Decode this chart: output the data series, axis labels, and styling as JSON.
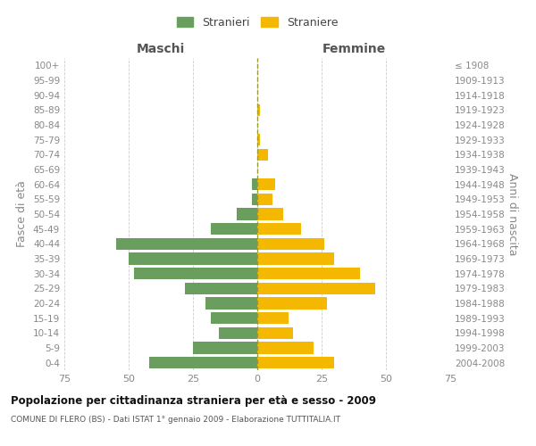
{
  "age_groups": [
    "0-4",
    "5-9",
    "10-14",
    "15-19",
    "20-24",
    "25-29",
    "30-34",
    "35-39",
    "40-44",
    "45-49",
    "50-54",
    "55-59",
    "60-64",
    "65-69",
    "70-74",
    "75-79",
    "80-84",
    "85-89",
    "90-94",
    "95-99",
    "100+"
  ],
  "birth_years": [
    "2004-2008",
    "1999-2003",
    "1994-1998",
    "1989-1993",
    "1984-1988",
    "1979-1983",
    "1974-1978",
    "1969-1973",
    "1964-1968",
    "1959-1963",
    "1954-1958",
    "1949-1953",
    "1944-1948",
    "1939-1943",
    "1934-1938",
    "1929-1933",
    "1924-1928",
    "1919-1923",
    "1914-1918",
    "1909-1913",
    "≤ 1908"
  ],
  "maschi": [
    42,
    25,
    15,
    18,
    20,
    28,
    48,
    50,
    55,
    18,
    8,
    2,
    2,
    0,
    0,
    0,
    0,
    0,
    0,
    0,
    0
  ],
  "femmine": [
    30,
    22,
    14,
    12,
    27,
    46,
    40,
    30,
    26,
    17,
    10,
    6,
    7,
    0,
    4,
    1,
    0,
    1,
    0,
    0,
    0
  ],
  "color_maschi": "#6a9e5e",
  "color_femmine": "#f5b800",
  "title": "Popolazione per cittadinanza straniera per età e sesso - 2009",
  "subtitle": "COMUNE DI FLERO (BS) - Dati ISTAT 1° gennaio 2009 - Elaborazione TUTTITALIA.IT",
  "xlabel_left": "Maschi",
  "xlabel_right": "Femmine",
  "ylabel_left": "Fasce di età",
  "ylabel_right": "Anni di nascita",
  "legend_maschi": "Stranieri",
  "legend_femmine": "Straniere",
  "xlim": 75,
  "background_color": "#ffffff",
  "grid_color": "#cccccc",
  "tick_color": "#888888",
  "center_line_color": "#999933"
}
